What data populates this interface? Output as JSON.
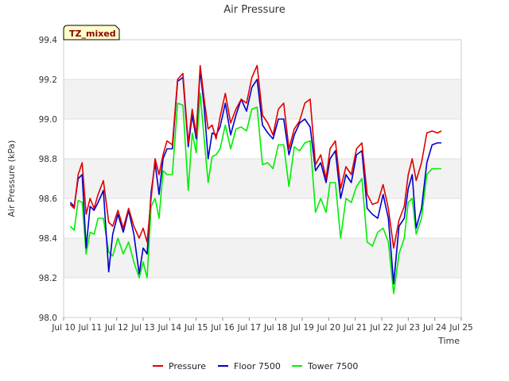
{
  "chart_data": {
    "type": "line",
    "title": "Air Pressure",
    "xlabel": "Time",
    "ylabel": "Air Pressure (kPa)",
    "badge": "TZ_mixed",
    "xlim": [
      10,
      25
    ],
    "ylim": [
      98.0,
      99.4
    ],
    "x_ticks": [
      10,
      11,
      12,
      13,
      14,
      15,
      16,
      17,
      18,
      19,
      20,
      21,
      22,
      23,
      24,
      25
    ],
    "x_tick_labels": [
      "Jul 10",
      "Jul 11",
      "Jul 12",
      "Jul 13",
      "Jul 14",
      "Jul 15",
      "Jul 16",
      "Jul 17",
      "Jul 18",
      "Jul 19",
      "Jul 20",
      "Jul 21",
      "Jul 22",
      "Jul 23",
      "Jul 24",
      "Jul 25"
    ],
    "y_ticks": [
      98.0,
      98.2,
      98.4,
      98.6,
      98.8,
      99.0,
      99.2,
      99.4
    ],
    "y_tick_labels": [
      "98.0",
      "98.2",
      "98.4",
      "98.6",
      "98.8",
      "99.0",
      "99.2",
      "99.4"
    ],
    "x": [
      10.25,
      10.4,
      10.55,
      10.7,
      10.85,
      11.0,
      11.15,
      11.3,
      11.5,
      11.7,
      11.85,
      12.05,
      12.25,
      12.45,
      12.65,
      12.85,
      13.0,
      13.15,
      13.3,
      13.45,
      13.6,
      13.75,
      13.9,
      14.1,
      14.3,
      14.5,
      14.7,
      14.85,
      15.0,
      15.15,
      15.3,
      15.45,
      15.6,
      15.75,
      15.9,
      16.1,
      16.3,
      16.5,
      16.7,
      16.9,
      17.1,
      17.3,
      17.5,
      17.7,
      17.9,
      18.1,
      18.3,
      18.5,
      18.7,
      18.9,
      19.1,
      19.3,
      19.5,
      19.7,
      19.9,
      20.05,
      20.25,
      20.45,
      20.65,
      20.85,
      21.05,
      21.25,
      21.45,
      21.65,
      21.85,
      22.05,
      22.25,
      22.45,
      22.65,
      22.85,
      23.0,
      23.15,
      23.3,
      23.5,
      23.7,
      23.9,
      24.1,
      24.25
    ],
    "series": [
      {
        "name": "Pressure",
        "color": "#e00000",
        "values": [
          98.57,
          98.55,
          98.72,
          98.78,
          98.52,
          98.6,
          98.55,
          98.62,
          98.69,
          98.48,
          98.46,
          98.54,
          98.45,
          98.55,
          98.46,
          98.4,
          98.45,
          98.38,
          98.6,
          98.8,
          98.72,
          98.82,
          98.89,
          98.87,
          99.2,
          99.23,
          98.88,
          99.05,
          98.92,
          99.27,
          99.1,
          98.95,
          98.97,
          98.9,
          99.01,
          99.13,
          98.98,
          99.05,
          99.1,
          99.08,
          99.21,
          99.27,
          99.02,
          98.98,
          98.92,
          99.05,
          99.08,
          98.85,
          98.95,
          98.99,
          99.08,
          99.1,
          98.77,
          98.82,
          98.7,
          98.85,
          98.89,
          98.65,
          98.76,
          98.72,
          98.85,
          98.88,
          98.62,
          98.57,
          98.58,
          98.67,
          98.55,
          98.35,
          98.49,
          98.56,
          98.72,
          98.8,
          98.69,
          98.78,
          98.93,
          98.94,
          98.93,
          98.94
        ]
      },
      {
        "name": "Floor 7500",
        "color": "#0000cc",
        "values": [
          98.58,
          98.56,
          98.7,
          98.72,
          98.35,
          98.56,
          98.54,
          98.58,
          98.64,
          98.23,
          98.42,
          98.52,
          98.43,
          98.54,
          98.42,
          98.22,
          98.35,
          98.32,
          98.63,
          98.78,
          98.62,
          98.8,
          98.85,
          98.85,
          99.19,
          99.21,
          98.86,
          99.02,
          98.9,
          99.25,
          99.06,
          98.8,
          98.93,
          98.92,
          98.96,
          99.08,
          98.92,
          99.02,
          99.1,
          99.04,
          99.16,
          99.2,
          98.97,
          98.93,
          98.9,
          99.0,
          99.0,
          98.82,
          98.92,
          98.98,
          99.0,
          98.96,
          98.74,
          98.78,
          98.68,
          98.8,
          98.84,
          98.6,
          98.72,
          98.68,
          98.82,
          98.84,
          98.55,
          98.52,
          98.5,
          98.62,
          98.5,
          98.17,
          98.46,
          98.5,
          98.65,
          98.72,
          98.45,
          98.55,
          98.78,
          98.87,
          98.88,
          98.88
        ]
      },
      {
        "name": "Tower 7500",
        "color": "#00ee00",
        "values": [
          98.46,
          98.44,
          98.59,
          98.58,
          98.32,
          98.43,
          98.42,
          98.5,
          98.5,
          98.33,
          98.31,
          98.4,
          98.32,
          98.38,
          98.28,
          98.2,
          98.28,
          98.2,
          98.56,
          98.6,
          98.5,
          98.74,
          98.72,
          98.72,
          99.08,
          99.07,
          98.64,
          98.93,
          98.83,
          99.13,
          98.9,
          98.68,
          98.81,
          98.82,
          98.85,
          98.97,
          98.85,
          98.95,
          98.96,
          98.94,
          99.05,
          99.06,
          98.77,
          98.78,
          98.75,
          98.87,
          98.87,
          98.66,
          98.86,
          98.84,
          98.88,
          98.89,
          98.53,
          98.6,
          98.53,
          98.68,
          98.68,
          98.4,
          98.6,
          98.58,
          98.66,
          98.7,
          98.38,
          98.36,
          98.43,
          98.45,
          98.38,
          98.12,
          98.32,
          98.4,
          98.58,
          98.6,
          98.42,
          98.5,
          98.72,
          98.75,
          98.75,
          98.75
        ]
      }
    ],
    "grid": true,
    "legend_position": "bottom-center"
  }
}
